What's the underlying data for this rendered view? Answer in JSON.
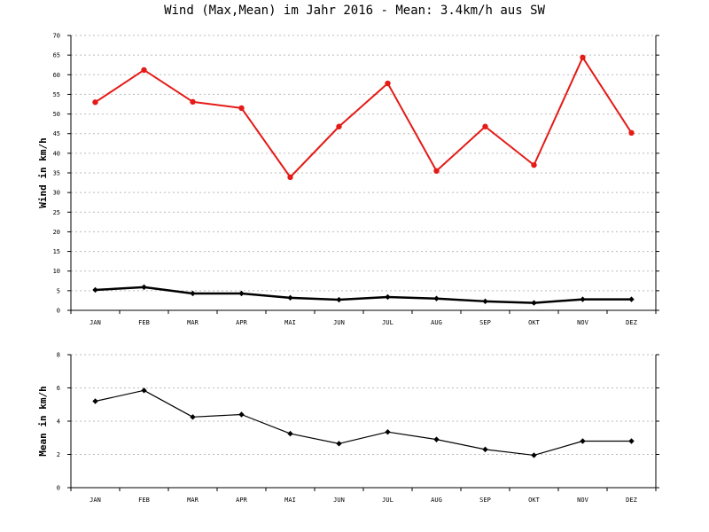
{
  "title": "Wind (Max,Mean) im Jahr 2016 - Mean: 3.4km/h aus SW",
  "colors": {
    "max": "#e41b17",
    "mean": "#000000",
    "grid": "#bbbbbb"
  },
  "chart_data": [
    {
      "type": "line",
      "categories": [
        "JAN",
        "FEB",
        "MAR",
        "APR",
        "MAI",
        "JUN",
        "JUL",
        "AUG",
        "SEP",
        "OKT",
        "NOV",
        "DEZ"
      ],
      "ylabel": "Wind in km/h",
      "ylim": [
        0,
        70
      ],
      "yticks": [
        0,
        5,
        10,
        15,
        20,
        25,
        30,
        35,
        40,
        45,
        50,
        55,
        60,
        65,
        70
      ],
      "grid": true,
      "series": [
        {
          "values": [
            53.0,
            61.2,
            53.1,
            51.5,
            33.9,
            46.8,
            57.8,
            35.5,
            46.8,
            37.0,
            64.4,
            45.2
          ]
        },
        {
          "values": [
            5.2,
            5.9,
            4.3,
            4.3,
            3.2,
            2.7,
            3.4,
            3.0,
            2.3,
            1.9,
            2.8,
            2.8
          ]
        }
      ]
    },
    {
      "type": "line",
      "categories": [
        "JAN",
        "FEB",
        "MAR",
        "APR",
        "MAI",
        "JUN",
        "JUL",
        "AUG",
        "SEP",
        "OKT",
        "NOV",
        "DEZ"
      ],
      "ylabel": "Mean in km/h",
      "ylim": [
        0,
        8
      ],
      "yticks": [
        0,
        2,
        4,
        6,
        8
      ],
      "grid": true,
      "series": [
        {
          "values": [
            5.2,
            5.85,
            4.25,
            4.4,
            3.25,
            2.65,
            3.35,
            2.9,
            2.3,
            1.95,
            2.8,
            2.8
          ]
        }
      ]
    }
  ]
}
